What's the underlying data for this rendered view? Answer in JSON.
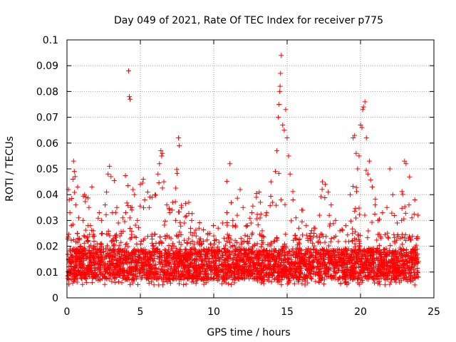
{
  "chart_data": {
    "type": "scatter",
    "title": "Day 049 of 2021, Rate Of TEC Index for receiver p775",
    "xlabel": "GPS time / hours",
    "ylabel": "ROTI / TECUs",
    "xlim": [
      0,
      25
    ],
    "ylim": [
      0,
      0.1
    ],
    "xticks": [
      0,
      5,
      10,
      15,
      20,
      25
    ],
    "xtick_labels": [
      "0",
      "5",
      "10",
      "15",
      "20",
      "25"
    ],
    "yticks": [
      0,
      0.01,
      0.02,
      0.03,
      0.04,
      0.05,
      0.06,
      0.07,
      0.08,
      0.09,
      0.1
    ],
    "ytick_labels": [
      "0",
      "0.01",
      "0.02",
      "0.03",
      "0.04",
      "0.05",
      "0.06",
      "0.07",
      "0.08",
      "0.09",
      "0.1"
    ],
    "grid": true,
    "marker": "+",
    "color": "#ff0000",
    "series": [
      {
        "name": "ROTI",
        "points": [
          [
            0.1,
            0.042
          ],
          [
            0.15,
            0.038
          ],
          [
            0.2,
            0.033
          ],
          [
            0.3,
            0.028
          ],
          [
            0.4,
            0.046
          ],
          [
            0.45,
            0.053
          ],
          [
            0.5,
            0.049
          ],
          [
            0.55,
            0.047
          ],
          [
            0.6,
            0.036
          ],
          [
            0.7,
            0.025
          ],
          [
            0.8,
            0.031
          ],
          [
            0.9,
            0.02
          ],
          [
            1.0,
            0.018
          ],
          [
            1.1,
            0.03
          ],
          [
            1.2,
            0.04
          ],
          [
            1.3,
            0.039
          ],
          [
            1.4,
            0.022
          ],
          [
            1.5,
            0.035
          ],
          [
            1.6,
            0.028
          ],
          [
            1.7,
            0.043
          ],
          [
            1.8,
            0.026
          ],
          [
            1.9,
            0.02
          ],
          [
            2.0,
            0.017
          ],
          [
            2.2,
            0.033
          ],
          [
            2.4,
            0.025
          ],
          [
            2.5,
            0.019
          ],
          [
            2.6,
            0.036
          ],
          [
            2.7,
            0.041
          ],
          [
            2.8,
            0.048
          ],
          [
            2.9,
            0.051
          ],
          [
            3.0,
            0.047
          ],
          [
            3.1,
            0.033
          ],
          [
            3.2,
            0.022
          ],
          [
            3.4,
            0.035
          ],
          [
            3.5,
            0.029
          ],
          [
            3.6,
            0.024
          ],
          [
            3.8,
            0.031
          ],
          [
            4.0,
            0.033
          ],
          [
            4.2,
            0.088
          ],
          [
            4.25,
            0.078
          ],
          [
            4.3,
            0.077
          ],
          [
            4.35,
            0.035
          ],
          [
            4.5,
            0.042
          ],
          [
            4.6,
            0.04
          ],
          [
            4.8,
            0.03
          ],
          [
            5.0,
            0.044
          ],
          [
            5.2,
            0.046
          ],
          [
            5.3,
            0.038
          ],
          [
            5.5,
            0.041
          ],
          [
            5.6,
            0.035
          ],
          [
            5.8,
            0.039
          ],
          [
            6.0,
            0.04
          ],
          [
            6.2,
            0.048
          ],
          [
            6.3,
            0.052
          ],
          [
            6.4,
            0.057
          ],
          [
            6.45,
            0.055
          ],
          [
            6.5,
            0.056
          ],
          [
            6.6,
            0.045
          ],
          [
            6.8,
            0.036
          ],
          [
            7.0,
            0.033
          ],
          [
            7.2,
            0.037
          ],
          [
            7.4,
            0.03
          ],
          [
            7.6,
            0.062
          ],
          [
            7.65,
            0.059
          ],
          [
            7.8,
            0.035
          ],
          [
            8.0,
            0.029
          ],
          [
            8.3,
            0.037
          ],
          [
            8.5,
            0.03
          ],
          [
            8.8,
            0.024
          ],
          [
            9.0,
            0.027
          ],
          [
            9.3,
            0.022
          ],
          [
            9.6,
            0.025
          ],
          [
            10.0,
            0.024
          ],
          [
            10.3,
            0.027
          ],
          [
            10.6,
            0.029
          ],
          [
            10.9,
            0.033
          ],
          [
            11.1,
            0.052
          ],
          [
            11.3,
            0.03
          ],
          [
            11.6,
            0.032
          ],
          [
            11.8,
            0.042
          ],
          [
            12.0,
            0.035
          ],
          [
            12.3,
            0.028
          ],
          [
            12.6,
            0.033
          ],
          [
            12.9,
            0.039
          ],
          [
            13.1,
            0.041
          ],
          [
            13.3,
            0.026
          ],
          [
            13.6,
            0.033
          ],
          [
            13.9,
            0.045
          ],
          [
            14.0,
            0.037
          ],
          [
            14.2,
            0.049
          ],
          [
            14.3,
            0.057
          ],
          [
            14.4,
            0.07
          ],
          [
            14.45,
            0.075
          ],
          [
            14.5,
            0.08
          ],
          [
            14.52,
            0.082
          ],
          [
            14.55,
            0.087
          ],
          [
            14.6,
            0.094
          ],
          [
            14.7,
            0.067
          ],
          [
            14.8,
            0.065
          ],
          [
            14.9,
            0.073
          ],
          [
            15.0,
            0.062
          ],
          [
            15.1,
            0.055
          ],
          [
            15.2,
            0.048
          ],
          [
            15.4,
            0.038
          ],
          [
            15.6,
            0.031
          ],
          [
            15.8,
            0.027
          ],
          [
            16.0,
            0.034
          ],
          [
            16.3,
            0.028
          ],
          [
            16.6,
            0.025
          ],
          [
            16.9,
            0.027
          ],
          [
            17.2,
            0.032
          ],
          [
            17.4,
            0.045
          ],
          [
            17.6,
            0.044
          ],
          [
            17.8,
            0.041
          ],
          [
            18.0,
            0.036
          ],
          [
            18.3,
            0.03
          ],
          [
            18.6,
            0.026
          ],
          [
            19.0,
            0.028
          ],
          [
            19.3,
            0.04
          ],
          [
            19.5,
            0.062
          ],
          [
            19.6,
            0.063
          ],
          [
            19.7,
            0.056
          ],
          [
            19.8,
            0.05
          ],
          [
            19.9,
            0.055
          ],
          [
            20.0,
            0.067
          ],
          [
            20.1,
            0.066
          ],
          [
            20.15,
            0.073
          ],
          [
            20.2,
            0.074
          ],
          [
            20.3,
            0.076
          ],
          [
            20.4,
            0.062
          ],
          [
            20.5,
            0.048
          ],
          [
            20.6,
            0.053
          ],
          [
            20.8,
            0.043
          ],
          [
            21.0,
            0.036
          ],
          [
            21.2,
            0.03
          ],
          [
            21.5,
            0.033
          ],
          [
            21.8,
            0.035
          ],
          [
            22.0,
            0.05
          ],
          [
            22.2,
            0.04
          ],
          [
            22.5,
            0.029
          ],
          [
            22.8,
            0.03
          ],
          [
            23.0,
            0.053
          ],
          [
            23.1,
            0.052
          ],
          [
            23.3,
            0.036
          ],
          [
            23.5,
            0.031
          ],
          [
            23.7,
            0.038
          ],
          [
            23.9,
            0.023
          ]
        ]
      }
    ]
  }
}
